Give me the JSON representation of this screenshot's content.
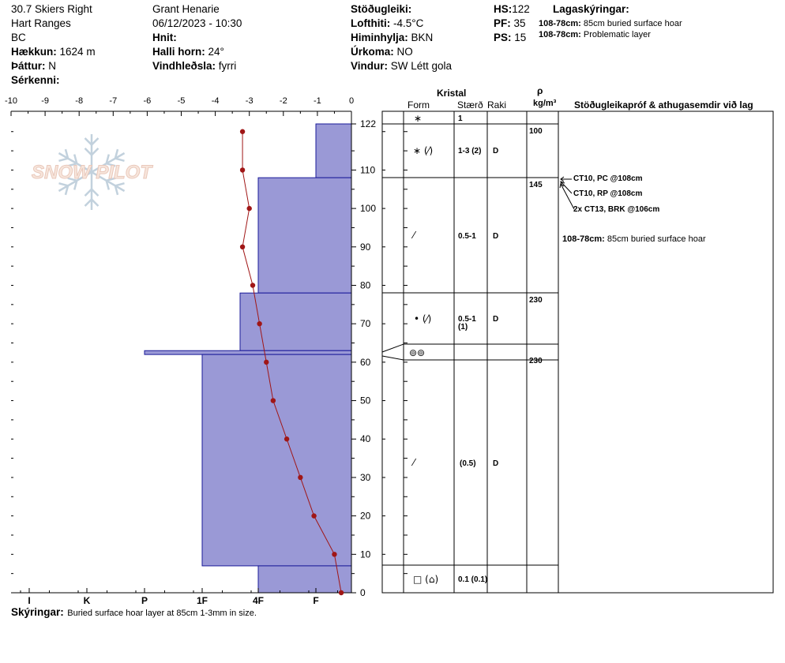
{
  "header": {
    "col1": {
      "line1": "30.7 Skiers Right",
      "line2": "Hart Ranges",
      "line3": "BC",
      "elev_label": "Hækkun:",
      "elev_value": "1624 m",
      "aspect_label": "Þáttur:",
      "aspect_value": "N",
      "features_label": "Sérkenni:"
    },
    "col2": {
      "observer": "Grant Henarie",
      "datetime": "06/12/2023 - 10:30",
      "coords_label": "Hnit:",
      "slope_label": "Halli horn:",
      "slope_value": "24°",
      "wind_loading_label": "Vindhleðsla:",
      "wind_loading_value": "fyrri"
    },
    "col3": {
      "stability_label": "Stöðugleiki:",
      "airtemp_label": "Lofthiti:",
      "airtemp_value": "-4.5°C",
      "sky_label": "Himinhylja:",
      "sky_value": "BKN",
      "precip_label": "Úrkoma:",
      "precip_value": "NO",
      "wind_label": "Vindur:",
      "wind_value": "SW  Létt gola"
    },
    "col4": {
      "hs_label": "HS:",
      "hs_value": "122",
      "pf_label": "PF:",
      "pf_value": "35",
      "ps_label": "PS:",
      "ps_value": "15"
    },
    "col5": {
      "title": "Lagaskýringar:",
      "l1_range": "108-78cm:",
      "l1_text": "85cm buried surface hoar",
      "l2_range": "108-78cm:",
      "l2_text": "Problematic layer"
    }
  },
  "logo_text": "SNOW PILOT",
  "table_headers": {
    "kristal": "Kristal",
    "form": "Form",
    "size": "Stærð",
    "moisture": "Raki",
    "rho": "ρ",
    "density_unit": "kg/m³",
    "tests": "Stöðugleikapróf & athugasemdir við lag"
  },
  "layers": [
    {
      "form": "∗",
      "size": "1",
      "moisture": "",
      "density": ""
    },
    {
      "form": "∗ (⁄)",
      "size": "1-3 (2)",
      "moisture": "D",
      "density": "100"
    },
    {
      "form": "⁄",
      "size": "0.5-1",
      "moisture": "D",
      "density": "145"
    },
    {
      "form": "• (⁄)",
      "size": "0.5-1",
      "size2": "(1)",
      "moisture": "D",
      "density": "230"
    },
    {
      "form": "⊚⊚",
      "size": "",
      "moisture": "",
      "density": ""
    },
    {
      "form": "⁄",
      "size": "(0.5)",
      "moisture": "D",
      "density": "230"
    },
    {
      "form": "□ (⌂)",
      "size": "0.1 (0.1)",
      "moisture": "",
      "density": ""
    }
  ],
  "tests": [
    "CT10, PC @108cm",
    "CT10, RP @108cm",
    "2x CT13, BRK @106cm"
  ],
  "layer_comment": {
    "range": "108-78cm:",
    "text": "85cm buried surface hoar"
  },
  "footer": {
    "label": "Skýringar:",
    "text": "Buried surface hoar layer at 85cm 1-3mm in size."
  },
  "colors": {
    "hardness_fill": "#9a99d6",
    "hardness_stroke": "#1a1a99",
    "temp_line": "#a01616"
  },
  "chart_data": {
    "type": "area",
    "temp_axis": {
      "ticks": [
        "-10",
        "-9",
        "-8",
        "-7",
        "-6",
        "-5",
        "-4",
        "-3",
        "-2",
        "-1",
        "0"
      ],
      "range": [
        -10,
        0
      ]
    },
    "depth_axis": {
      "ticks": [
        "122",
        "110",
        "100",
        "90",
        "80",
        "70",
        "60",
        "50",
        "40",
        "30",
        "20",
        "10",
        "0"
      ],
      "range": [
        0,
        122
      ],
      "unit": "cm"
    },
    "hardness_axis": {
      "ticks": [
        "I",
        "K",
        "P",
        "1F",
        "4F",
        "F"
      ]
    },
    "hardness_profile": [
      {
        "top": 122,
        "bottom": 108,
        "hardness": "F"
      },
      {
        "top": 108,
        "bottom": 78,
        "hardness": "4F"
      },
      {
        "top": 78,
        "bottom": 63,
        "hardness": "4F-"
      },
      {
        "top": 63,
        "bottom": 62,
        "hardness": "P"
      },
      {
        "top": 62,
        "bottom": 7,
        "hardness": "1F"
      },
      {
        "top": 7,
        "bottom": 0,
        "hardness": "4F"
      }
    ],
    "temperature_profile": [
      {
        "depth": 120,
        "temp": -3.2
      },
      {
        "depth": 110,
        "temp": -3.2
      },
      {
        "depth": 100,
        "temp": -3.0
      },
      {
        "depth": 90,
        "temp": -3.2
      },
      {
        "depth": 80,
        "temp": -2.9
      },
      {
        "depth": 70,
        "temp": -2.7
      },
      {
        "depth": 60,
        "temp": -2.5
      },
      {
        "depth": 50,
        "temp": -2.3
      },
      {
        "depth": 40,
        "temp": -1.9
      },
      {
        "depth": 30,
        "temp": -1.5
      },
      {
        "depth": 20,
        "temp": -1.1
      },
      {
        "depth": 10,
        "temp": -0.5
      },
      {
        "depth": 0,
        "temp": -0.3
      }
    ]
  }
}
